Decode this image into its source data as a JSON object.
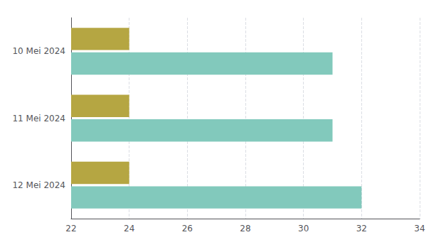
{
  "chart_data": {
    "type": "bar",
    "orientation": "horizontal",
    "categories": [
      "10 Mei 2024",
      "11 Mei 2024",
      "12 Mei 2024"
    ],
    "series": [
      {
        "color": "#b5a642",
        "values": [
          24,
          24,
          24
        ]
      },
      {
        "color": "#82c9bc",
        "values": [
          31,
          31,
          32
        ]
      }
    ],
    "xlim": [
      22,
      34
    ],
    "xticks": [
      22,
      24,
      26,
      28,
      30,
      32,
      34
    ],
    "grid": true
  }
}
